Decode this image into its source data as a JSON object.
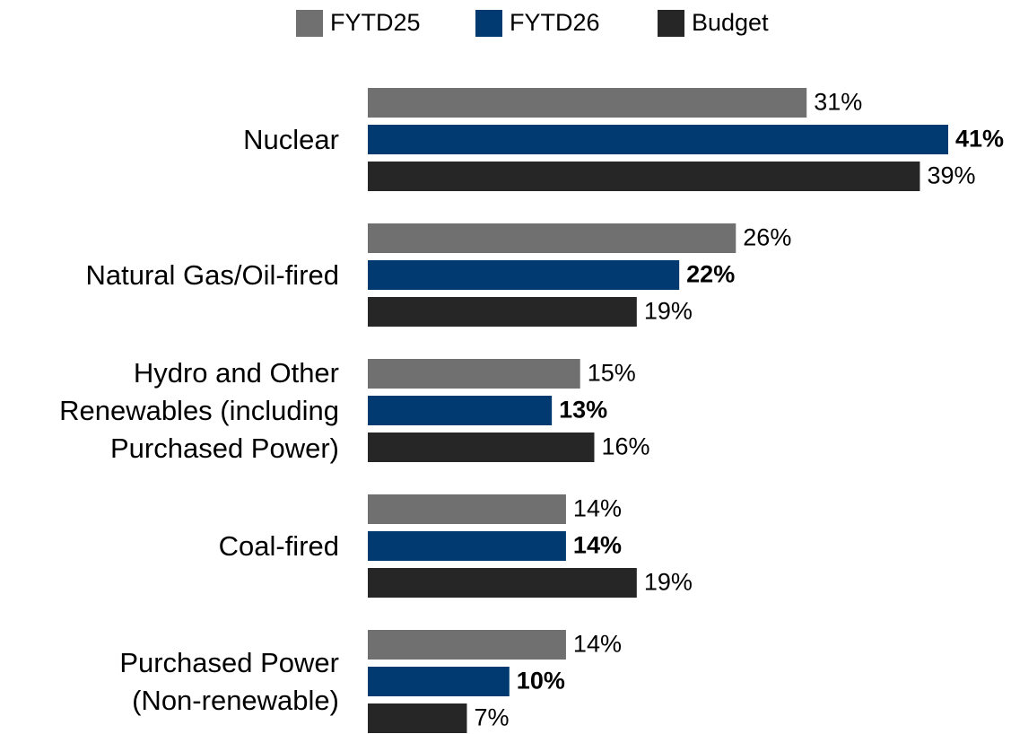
{
  "chart_data": {
    "type": "hbar",
    "categories": [
      "Nuclear",
      "Natural Gas/Oil-fired",
      "Hydro and Other\nRenewables (including\nPurchased Power)",
      "Coal-fired",
      "Purchased Power\n(Non-renewable)"
    ],
    "series": [
      {
        "name": "FYTD25",
        "color": "#707070",
        "bold_labels": false,
        "values": [
          31,
          26,
          15,
          14,
          14
        ],
        "value_labels": [
          "31%",
          "26%",
          "15%",
          "14%",
          "14%"
        ]
      },
      {
        "name": "FYTD26",
        "color": "#003a70",
        "bold_labels": true,
        "values": [
          41,
          22,
          13,
          14,
          10
        ],
        "value_labels": [
          "41%",
          "22%",
          "13%",
          "14%",
          "10%"
        ]
      },
      {
        "name": "Budget",
        "color": "#262626",
        "bold_labels": false,
        "values": [
          39,
          19,
          16,
          19,
          7
        ],
        "value_labels": [
          "39%",
          "19%",
          "16%",
          "19%",
          "7%"
        ]
      }
    ],
    "legend": "top"
  }
}
